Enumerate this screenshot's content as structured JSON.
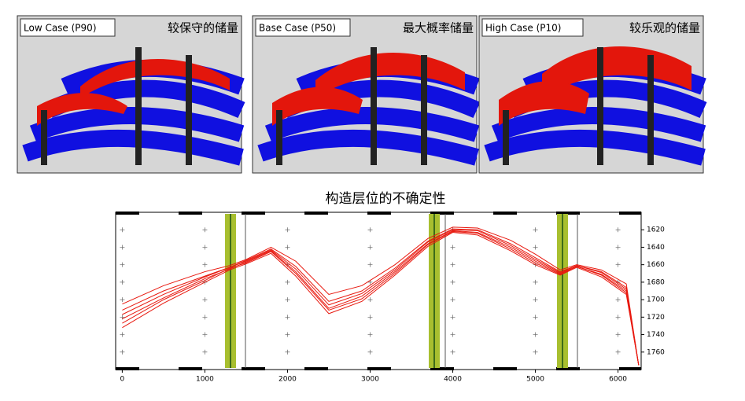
{
  "panels": [
    {
      "label": "Low Case (P90)",
      "caption": "较保守的储量"
    },
    {
      "label": "Base Case (P50)",
      "caption": "最大概率储量"
    },
    {
      "label": "High Case (P10)",
      "caption": "较乐观的储量"
    }
  ],
  "chart_data": {
    "type": "line",
    "title": "构造层位的不确定性",
    "x": [
      0,
      500,
      1000,
      1300,
      1500,
      1800,
      2100,
      2500,
      2900,
      3300,
      3700,
      4000,
      4300,
      4700,
      5000,
      5300,
      5500,
      5800,
      6100,
      6250
    ],
    "series": [
      {
        "color": "#e8190f",
        "values": [
          1712,
          1690,
          1673,
          1663,
          1655,
          1642,
          1662,
          1702,
          1690,
          1664,
          1633,
          1619,
          1620,
          1636,
          1652,
          1668,
          1661,
          1668,
          1686,
          1775
        ]
      },
      {
        "color": "#e8190f",
        "values": [
          1722,
          1698,
          1676,
          1665,
          1657,
          1644,
          1668,
          1710,
          1696,
          1668,
          1636,
          1621,
          1623,
          1640,
          1656,
          1670,
          1662,
          1671,
          1690,
          1775
        ]
      },
      {
        "color": "#e8190f",
        "values": [
          1732,
          1704,
          1680,
          1666,
          1659,
          1647,
          1673,
          1716,
          1702,
          1672,
          1639,
          1623,
          1626,
          1644,
          1660,
          1672,
          1663,
          1674,
          1694,
          1775
        ]
      },
      {
        "color": "#e8190f",
        "values": [
          1705,
          1684,
          1668,
          1661,
          1654,
          1640,
          1656,
          1694,
          1684,
          1660,
          1630,
          1617,
          1618,
          1632,
          1648,
          1666,
          1660,
          1666,
          1682,
          1775
        ]
      },
      {
        "color": "#e8190f",
        "values": [
          1727,
          1700,
          1678,
          1664,
          1658,
          1645,
          1670,
          1712,
          1699,
          1670,
          1637,
          1622,
          1624,
          1642,
          1658,
          1671,
          1662,
          1672,
          1692,
          1775
        ]
      },
      {
        "color": "#e8190f",
        "values": [
          1717,
          1694,
          1674,
          1663,
          1656,
          1643,
          1665,
          1706,
          1693,
          1666,
          1634,
          1620,
          1621,
          1638,
          1654,
          1669,
          1661,
          1669,
          1688,
          1775
        ]
      }
    ],
    "xlim": [
      -80,
      6280
    ],
    "ylim": [
      1600,
      1780
    ],
    "xticks": [
      0,
      1000,
      2000,
      3000,
      4000,
      5000,
      6000
    ],
    "yticks": [
      1620,
      1640,
      1660,
      1680,
      1700,
      1720,
      1740,
      1760
    ],
    "y_inverted": true,
    "y_axis_side": "right"
  }
}
